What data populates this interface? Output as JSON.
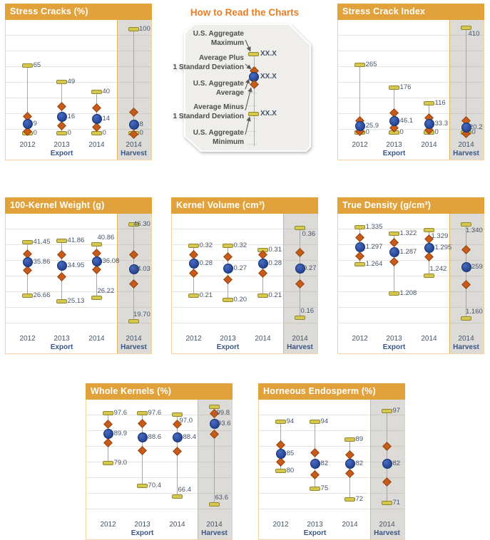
{
  "colors": {
    "header_bg": "#E2A23B",
    "header_text": "#FFFFFF",
    "legend_title": "#E87E22",
    "legend_text": "#4D4D4D",
    "legend_value_text": "#44546A",
    "legend_fill": "#EFEEEB",
    "value_label": "#44546A",
    "axis_year": "#44546A",
    "group_label": "#3B5684",
    "avg_circle": "#2A4A9D",
    "avg_circle_border": "#16336E",
    "std_diamond": "#C75B1B",
    "std_diamond_border": "#94430D",
    "range_dash": "#D6C84F",
    "range_dash_border": "#8F872F",
    "harvest_column": "rgba(168,166,156,0.40)",
    "harvest_divider": "#E3B662",
    "gridline": "#E8E4DB",
    "panel_border": "#F2D4A4",
    "connector_line": "#A6A6A6"
  },
  "axis": {
    "export_label": "Export",
    "harvest_label": "Harvest"
  },
  "legend": {
    "title": "How to Read the Charts",
    "value_placeholder": "XX.X",
    "items": [
      {
        "line1": "U.S. Aggregate",
        "line2": "Maximum"
      },
      {
        "line1": "Average Plus",
        "line2": "1 Standard Deviation"
      },
      {
        "line1": "U.S. Aggregate",
        "line2": "Average"
      },
      {
        "line1": "Average Minus",
        "line2": "1 Standard Deviation"
      },
      {
        "line1": "U.S. Aggregate",
        "line2": "Minimum"
      }
    ]
  },
  "chart_data": [
    {
      "type": "scatter",
      "subtype": "min-max-average-range",
      "title": "Stress Cracks (%)",
      "categories": [
        "2012",
        "2013",
        "2014",
        "2014"
      ],
      "groups": [
        "Export",
        "Export",
        "Export",
        "Harvest"
      ],
      "ylim": [
        -2,
        106
      ],
      "grid": true,
      "series": [
        {
          "category": "2012",
          "group": "Export",
          "max": 65,
          "plus_std": 16,
          "avg": 9,
          "minus_std": 2,
          "min": 0,
          "labels": {
            "max": "65",
            "avg": "9",
            "min": "0"
          }
        },
        {
          "category": "2013",
          "group": "Export",
          "max": 49,
          "plus_std": 26,
          "avg": 16,
          "minus_std": 7,
          "min": 0,
          "labels": {
            "max": "49",
            "avg": "16",
            "min": "0"
          }
        },
        {
          "category": "2014",
          "group": "Export",
          "max": 40,
          "plus_std": 24,
          "avg": 14,
          "minus_std": 6,
          "min": 0,
          "labels": {
            "max": "40",
            "avg": "14",
            "min": "0"
          }
        },
        {
          "category": "2014",
          "group": "Harvest",
          "max": 100,
          "plus_std": 20,
          "avg": 8,
          "minus_std": -1,
          "min": 0,
          "labels": {
            "max": "100",
            "avg": "8",
            "min": "0"
          }
        }
      ]
    },
    {
      "type": "scatter",
      "subtype": "min-max-average-range",
      "title": "Stress Crack Index",
      "categories": [
        "2012",
        "2013",
        "2014",
        "2014"
      ],
      "groups": [
        "Export",
        "Export",
        "Export",
        "Harvest"
      ],
      "ylim": [
        -10,
        430
      ],
      "grid": true,
      "series": [
        {
          "category": "2012",
          "group": "Export",
          "max": 265,
          "plus_std": 48,
          "avg": 25.9,
          "minus_std": 6,
          "min": 0,
          "labels": {
            "max": "265",
            "avg": "25.9",
            "min": "0"
          }
        },
        {
          "category": "2013",
          "group": "Export",
          "max": 176,
          "plus_std": 78,
          "avg": 46.1,
          "minus_std": 18,
          "min": 0,
          "labels": {
            "max": "176",
            "avg": "46.1",
            "min": "0"
          }
        },
        {
          "category": "2014",
          "group": "Export",
          "max": 116,
          "plus_std": 57,
          "avg": 33.3,
          "minus_std": 11,
          "min": 0,
          "labels": {
            "max": "116",
            "avg": "33.3",
            "min": "0"
          }
        },
        {
          "category": "2014",
          "group": "Harvest",
          "max": 410,
          "plus_std": 46,
          "avg": 20.2,
          "minus_std": -3,
          "min": 0,
          "labels": {
            "max": "410",
            "avg": "20.2",
            "min": "0"
          },
          "label_pos": {
            "max": "below"
          }
        }
      ]
    },
    {
      "type": "scatter",
      "subtype": "min-max-average-range",
      "title": "100-Kernel Weight (g)",
      "categories": [
        "2012",
        "2013",
        "2014",
        "2014"
      ],
      "groups": [
        "Export",
        "Export",
        "Export",
        "Harvest"
      ],
      "ylim": [
        17.5,
        48.5
      ],
      "grid": true,
      "series": [
        {
          "category": "2012",
          "group": "Export",
          "max": 41.45,
          "plus_std": 38.2,
          "avg": 35.86,
          "minus_std": 33.6,
          "min": 26.66,
          "labels": {
            "max": "41.45",
            "avg": "35.86",
            "min": "26.66"
          }
        },
        {
          "category": "2013",
          "group": "Export",
          "max": 41.86,
          "plus_std": 38.0,
          "avg": 34.95,
          "minus_std": 32.0,
          "min": 25.13,
          "labels": {
            "max": "41.86",
            "avg": "34.95",
            "min": "25.13"
          }
        },
        {
          "category": "2014",
          "group": "Export",
          "max": 40.86,
          "plus_std": 38.4,
          "avg": 36.08,
          "minus_std": 33.8,
          "min": 26.22,
          "labels": {
            "max": "40.86",
            "avg": "36.08",
            "min": "26.22"
          },
          "label_pos": {
            "max": "above",
            "min": "above"
          }
        },
        {
          "category": "2014",
          "group": "Harvest",
          "max": 46.3,
          "plus_std": 38.0,
          "avg": 34.03,
          "minus_std": 30.0,
          "min": 19.7,
          "labels": {
            "max": "46.30",
            "avg": "34.03",
            "min": "19.70"
          },
          "label_pos": {
            "min": "above"
          }
        }
      ]
    },
    {
      "type": "scatter",
      "subtype": "min-max-average-range",
      "title": "Kernel Volume (cm³)",
      "categories": [
        "2012",
        "2013",
        "2014",
        "2014"
      ],
      "groups": [
        "Export",
        "Export",
        "Export",
        "Harvest"
      ],
      "ylim": [
        0.135,
        0.385
      ],
      "grid": true,
      "series": [
        {
          "category": "2012",
          "group": "Export",
          "max": 0.32,
          "plus_std": 0.3,
          "avg": 0.28,
          "minus_std": 0.26,
          "min": 0.21,
          "labels": {
            "max": "0.32",
            "avg": "0.28",
            "min": "0.21"
          }
        },
        {
          "category": "2013",
          "group": "Export",
          "max": 0.32,
          "plus_std": 0.295,
          "avg": 0.27,
          "minus_std": 0.245,
          "min": 0.2,
          "labels": {
            "max": "0.32",
            "avg": "0.27",
            "min": "0.20"
          }
        },
        {
          "category": "2014",
          "group": "Export",
          "max": 0.31,
          "plus_std": 0.3,
          "avg": 0.28,
          "minus_std": 0.26,
          "min": 0.21,
          "labels": {
            "max": "0.31",
            "avg": "0.28",
            "min": "0.21"
          }
        },
        {
          "category": "2014",
          "group": "Harvest",
          "max": 0.36,
          "plus_std": 0.305,
          "avg": 0.27,
          "minus_std": 0.235,
          "min": 0.16,
          "labels": {
            "max": "0.36",
            "avg": "0.27",
            "min": "0.16"
          },
          "label_pos": {
            "max": "below",
            "min": "above"
          }
        }
      ]
    },
    {
      "type": "scatter",
      "subtype": "min-max-average-range",
      "title": "True Density (g/cm³)",
      "categories": [
        "2012",
        "2013",
        "2014",
        "2014"
      ],
      "groups": [
        "Export",
        "Export",
        "Export",
        "Harvest"
      ],
      "ylim": [
        1.14,
        1.355
      ],
      "grid": true,
      "series": [
        {
          "category": "2012",
          "group": "Export",
          "max": 1.335,
          "plus_std": 1.315,
          "avg": 1.297,
          "minus_std": 1.28,
          "min": 1.264,
          "labels": {
            "max": "1.335",
            "avg": "1.297",
            "min": "1.264"
          }
        },
        {
          "category": "2013",
          "group": "Export",
          "max": 1.322,
          "plus_std": 1.305,
          "avg": 1.287,
          "minus_std": 1.268,
          "min": 1.208,
          "labels": {
            "max": "1.322",
            "avg": "1.287",
            "min": "1.208"
          }
        },
        {
          "category": "2014",
          "group": "Export",
          "max": 1.329,
          "plus_std": 1.312,
          "avg": 1.295,
          "minus_std": 1.278,
          "min": 1.242,
          "labels": {
            "max": "1.329",
            "avg": "1.295",
            "min": "1.242"
          },
          "label_pos": {
            "max": "below",
            "min": "above"
          }
        },
        {
          "category": "2014",
          "group": "Harvest",
          "max": 1.34,
          "plus_std": 1.292,
          "avg": 1.259,
          "minus_std": 1.225,
          "min": 1.16,
          "labels": {
            "max": "1.340",
            "avg": "1.259",
            "min": "1.160"
          },
          "label_pos": {
            "max": "below",
            "min": "above"
          }
        }
      ]
    },
    {
      "type": "scatter",
      "subtype": "min-max-average-range",
      "title": "Whole Kernels (%)",
      "categories": [
        "2012",
        "2013",
        "2014",
        "2014"
      ],
      "groups": [
        "Export",
        "Export",
        "Export",
        "Harvest"
      ],
      "ylim": [
        59.5,
        101.5
      ],
      "grid": true,
      "series": [
        {
          "category": "2012",
          "group": "Export",
          "max": 97.6,
          "plus_std": 93.5,
          "avg": 89.9,
          "minus_std": 86.4,
          "min": 79.0,
          "labels": {
            "max": "97.6",
            "avg": "89.9",
            "min": "79.0"
          }
        },
        {
          "category": "2013",
          "group": "Export",
          "max": 97.6,
          "plus_std": 93.6,
          "avg": 88.6,
          "minus_std": 83.5,
          "min": 70.4,
          "labels": {
            "max": "97.6",
            "avg": "88.6",
            "min": "70.4"
          }
        },
        {
          "category": "2014",
          "group": "Export",
          "max": 97.0,
          "plus_std": 93.5,
          "avg": 88.4,
          "minus_std": 83.2,
          "min": 66.4,
          "labels": {
            "max": "97.0",
            "avg": "88.4",
            "min": "66.4"
          },
          "label_pos": {
            "max": "below",
            "min": "above"
          }
        },
        {
          "category": "2014",
          "group": "Harvest",
          "max": 99.8,
          "plus_std": 97.5,
          "avg": 93.6,
          "minus_std": 89.6,
          "min": 63.6,
          "labels": {
            "max": "99.8",
            "avg": "93.6",
            "min": "63.6"
          },
          "label_pos": {
            "max": "below",
            "min": "above"
          }
        }
      ]
    },
    {
      "type": "scatter",
      "subtype": "min-max-average-range",
      "title": "Horneous Endosperm (%)",
      "categories": [
        "2012",
        "2013",
        "2014",
        "2014"
      ],
      "groups": [
        "Export",
        "Export",
        "Export",
        "Harvest"
      ],
      "ylim": [
        67.5,
        99.5
      ],
      "grid": true,
      "series": [
        {
          "category": "2012",
          "group": "Export",
          "max": 94,
          "plus_std": 87.5,
          "avg": 85,
          "minus_std": 82.5,
          "min": 80,
          "labels": {
            "max": "94",
            "avg": "85",
            "min": "80"
          }
        },
        {
          "category": "2013",
          "group": "Export",
          "max": 94,
          "plus_std": 85.2,
          "avg": 82,
          "minus_std": 79.0,
          "min": 75,
          "labels": {
            "max": "94",
            "avg": "82",
            "min": "75"
          }
        },
        {
          "category": "2014",
          "group": "Export",
          "max": 89,
          "plus_std": 84.6,
          "avg": 82,
          "minus_std": 79.4,
          "min": 72,
          "labels": {
            "max": "89",
            "avg": "82",
            "min": "72"
          }
        },
        {
          "category": "2014",
          "group": "Harvest",
          "max": 97,
          "plus_std": 87.0,
          "avg": 82,
          "minus_std": 77.0,
          "min": 71,
          "labels": {
            "max": "97",
            "avg": "82",
            "min": "71"
          }
        }
      ]
    }
  ]
}
